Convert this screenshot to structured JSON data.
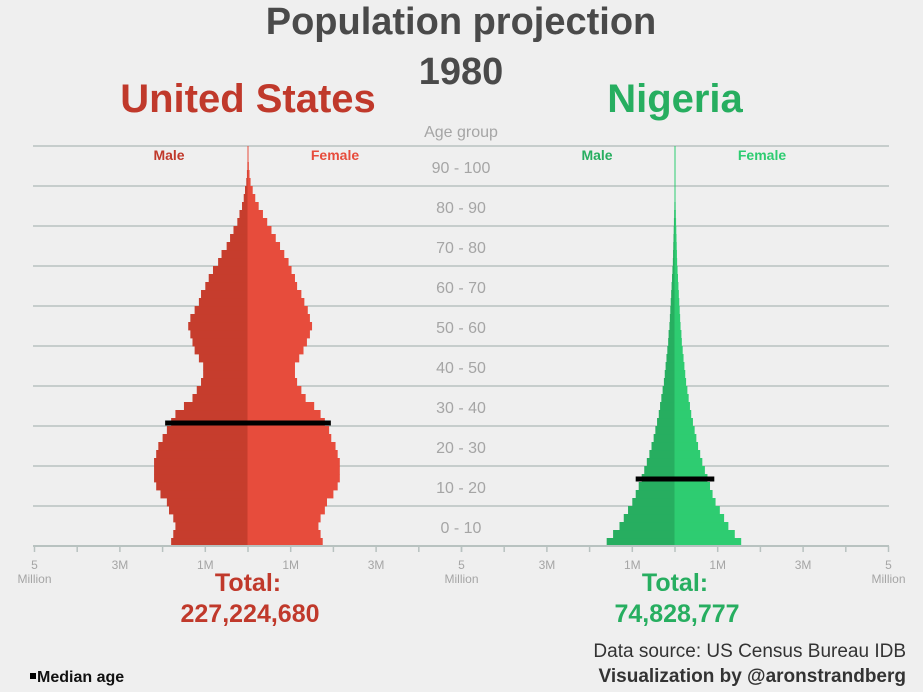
{
  "title": "Population projection",
  "year": "1980",
  "axis": {
    "age_group_label": "Age group",
    "unit_label": "Million",
    "tick_labels": [
      "5",
      "3M",
      "1M",
      "1M",
      "3M",
      "5"
    ]
  },
  "legend": {
    "median_label": "Median age"
  },
  "footer": {
    "source": "Data source: US Census Bureau IDB",
    "credit": "Visualization by @aronstrandberg"
  },
  "colors": {
    "us_male": "#c63d2d",
    "us_female": "#e74c3c",
    "ng_male": "#27ae60",
    "ng_female": "#2ecc71",
    "grid": "#b8c2c0",
    "median": "#000000"
  },
  "chart_data": [
    {
      "type": "population-pyramid",
      "country": "United States",
      "male_label": "Male",
      "female_label": "Female",
      "total_label": "Total:",
      "total": "227,224,680",
      "age_groups": [
        "0 - 10",
        "10 - 20",
        "20 - 30",
        "30 - 40",
        "40 - 50",
        "50 - 60",
        "60 - 70",
        "70 - 80",
        "80 - 90",
        "90 - 100"
      ],
      "x_range_millions": [
        -5,
        5
      ],
      "median_age": 30,
      "ages": [
        0,
        2,
        4,
        6,
        8,
        10,
        12,
        14,
        16,
        18,
        20,
        22,
        24,
        26,
        28,
        30,
        32,
        34,
        36,
        38,
        40,
        42,
        44,
        46,
        48,
        50,
        52,
        54,
        56,
        58,
        60,
        62,
        64,
        66,
        68,
        70,
        72,
        74,
        76,
        78,
        80,
        82,
        84,
        86,
        88,
        90,
        92,
        94,
        96,
        98
      ],
      "male_millions": [
        1.8,
        1.75,
        1.7,
        1.75,
        1.85,
        1.9,
        2.05,
        2.15,
        2.2,
        2.2,
        2.2,
        2.15,
        2.1,
        2.0,
        1.9,
        1.8,
        1.7,
        1.5,
        1.3,
        1.2,
        1.1,
        1.05,
        1.05,
        1.15,
        1.25,
        1.3,
        1.35,
        1.4,
        1.35,
        1.25,
        1.15,
        1.1,
        1.0,
        0.92,
        0.82,
        0.7,
        0.62,
        0.5,
        0.42,
        0.34,
        0.25,
        0.2,
        0.14,
        0.1,
        0.07,
        0.04,
        0.025,
        0.015,
        0.01,
        0.005
      ],
      "female_millions": [
        1.75,
        1.7,
        1.65,
        1.7,
        1.8,
        1.85,
        2.0,
        2.1,
        2.15,
        2.15,
        2.15,
        2.1,
        2.05,
        1.95,
        1.9,
        1.8,
        1.7,
        1.55,
        1.35,
        1.25,
        1.15,
        1.1,
        1.1,
        1.2,
        1.3,
        1.38,
        1.45,
        1.5,
        1.45,
        1.4,
        1.32,
        1.25,
        1.15,
        1.1,
        1.02,
        0.95,
        0.85,
        0.75,
        0.65,
        0.55,
        0.45,
        0.35,
        0.25,
        0.17,
        0.11,
        0.06,
        0.035,
        0.02,
        0.01,
        0.005
      ]
    },
    {
      "type": "population-pyramid",
      "country": "Nigeria",
      "male_label": "Male",
      "female_label": "Female",
      "total_label": "Total:",
      "total": "74,828,777",
      "age_groups": [
        "0 - 10",
        "10 - 20",
        "20 - 30",
        "30 - 40",
        "40 - 50",
        "50 - 60",
        "60 - 70",
        "70 - 80",
        "80 - 90",
        "90 - 100"
      ],
      "x_range_millions": [
        -5,
        5
      ],
      "median_age": 16,
      "ages": [
        0,
        2,
        4,
        6,
        8,
        10,
        12,
        14,
        16,
        18,
        20,
        22,
        24,
        26,
        28,
        30,
        32,
        34,
        36,
        38,
        40,
        42,
        44,
        46,
        48,
        50,
        52,
        54,
        56,
        58,
        60,
        62,
        64,
        66,
        68,
        70,
        72,
        74,
        76,
        78,
        80,
        82,
        84,
        86,
        88,
        90,
        92,
        94,
        96,
        98
      ],
      "male_millions": [
        1.6,
        1.45,
        1.3,
        1.2,
        1.1,
        1.0,
        0.92,
        0.85,
        0.78,
        0.72,
        0.66,
        0.6,
        0.55,
        0.5,
        0.46,
        0.42,
        0.38,
        0.35,
        0.32,
        0.29,
        0.26,
        0.24,
        0.22,
        0.2,
        0.18,
        0.16,
        0.15,
        0.13,
        0.12,
        0.11,
        0.1,
        0.09,
        0.08,
        0.07,
        0.06,
        0.05,
        0.045,
        0.04,
        0.035,
        0.03,
        0.025,
        0.02,
        0.015,
        0.01,
        0.008,
        0.005,
        0.004,
        0.003,
        0.002,
        0.001
      ],
      "female_millions": [
        1.55,
        1.4,
        1.25,
        1.15,
        1.05,
        0.95,
        0.88,
        0.82,
        0.76,
        0.7,
        0.64,
        0.59,
        0.54,
        0.5,
        0.46,
        0.42,
        0.38,
        0.35,
        0.32,
        0.29,
        0.26,
        0.24,
        0.22,
        0.2,
        0.18,
        0.16,
        0.15,
        0.13,
        0.12,
        0.11,
        0.1,
        0.09,
        0.08,
        0.07,
        0.06,
        0.05,
        0.045,
        0.04,
        0.035,
        0.03,
        0.025,
        0.02,
        0.015,
        0.01,
        0.008,
        0.005,
        0.004,
        0.003,
        0.002,
        0.001
      ]
    }
  ]
}
